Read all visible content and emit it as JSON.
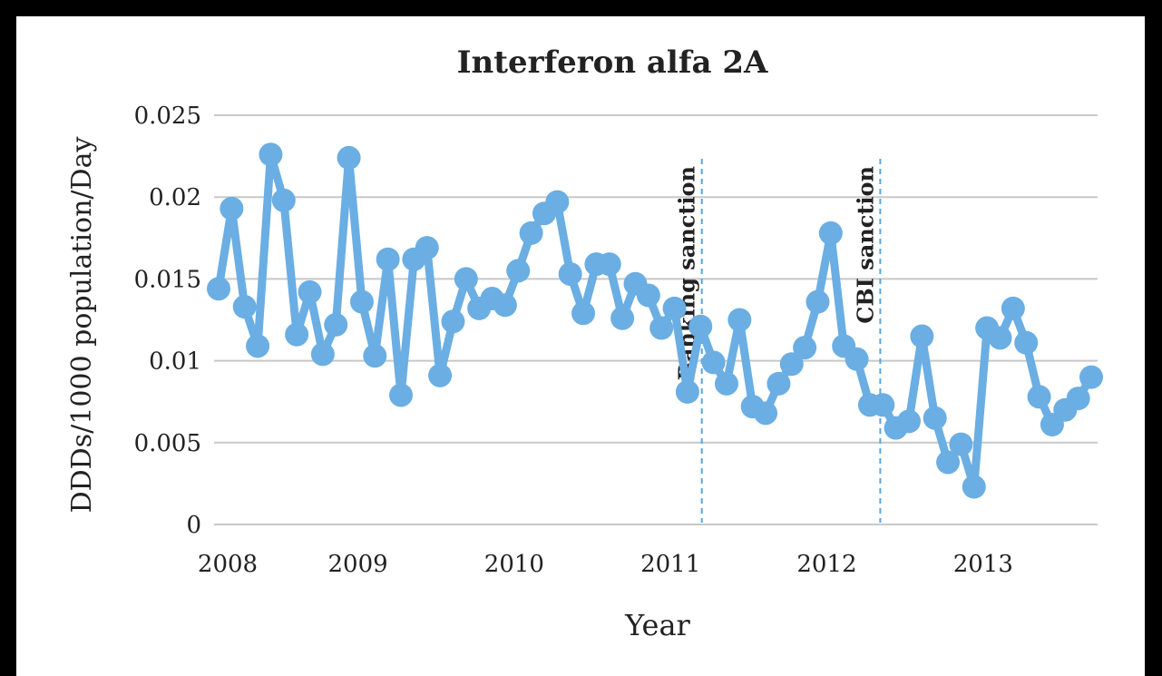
{
  "chart_data": {
    "type": "line",
    "title": "Interferon alfa 2A",
    "x_label": "Year",
    "y_label": "DDDs/1000 population/Day",
    "categories": [
      "2008",
      null,
      null,
      null,
      null,
      null,
      null,
      null,
      null,
      null,
      "2009",
      null,
      null,
      null,
      null,
      null,
      null,
      null,
      null,
      null,
      null,
      null,
      "2010",
      null,
      null,
      null,
      null,
      null,
      null,
      null,
      null,
      null,
      null,
      null,
      "2011",
      null,
      null,
      null,
      null,
      null,
      null,
      null,
      null,
      null,
      null,
      null,
      "2012",
      null,
      null,
      null,
      null,
      null,
      null,
      null,
      null,
      null,
      null,
      null,
      "2013",
      null,
      null,
      null,
      null,
      null,
      null,
      null,
      null,
      null
    ],
    "series": [
      {
        "name": "Interferon alfa 2A",
        "color": "#6aaee3",
        "values": [
          0.0144,
          0.0193,
          0.0133,
          0.0109,
          0.0226,
          0.0198,
          0.0116,
          0.0142,
          0.0104,
          0.0122,
          0.0224,
          0.0136,
          0.0103,
          0.0162,
          0.0079,
          0.0162,
          0.0169,
          0.0091,
          0.0124,
          0.015,
          0.0132,
          0.0138,
          0.0134,
          0.0155,
          0.0178,
          0.019,
          0.0197,
          0.0153,
          0.0129,
          0.0159,
          0.0159,
          0.0126,
          0.0147,
          0.014,
          0.012,
          0.0132,
          0.0081,
          0.0121,
          0.0099,
          0.0086,
          0.0125,
          0.0072,
          0.0068,
          0.0086,
          0.0098,
          0.0108,
          0.0136,
          0.0178,
          0.0109,
          0.0101,
          0.0073,
          0.0073,
          0.0059,
          0.0063,
          0.0115,
          0.0065,
          0.0038,
          0.0049,
          0.0023,
          0.012,
          0.0114,
          0.0132,
          0.0111,
          0.0078,
          0.0061,
          0.007,
          0.0077,
          0.009
        ]
      }
    ],
    "ylim": [
      0,
      0.025
    ],
    "yticks": [
      0,
      0.005,
      0.01,
      0.015,
      0.02,
      0.025
    ],
    "grid": true,
    "annotations": [
      {
        "text": "Banking sanction",
        "x": 37.1
      },
      {
        "text": "CBI sanction",
        "x": 50.8
      }
    ]
  }
}
